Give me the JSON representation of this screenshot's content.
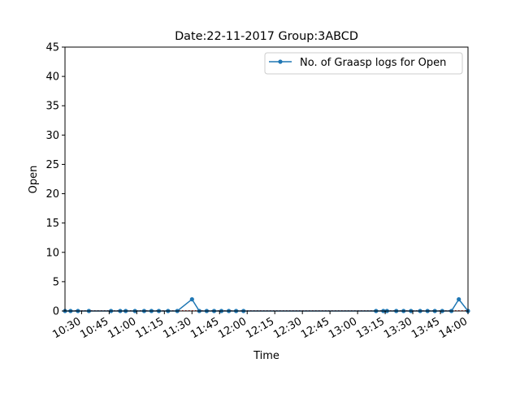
{
  "chart_data": {
    "type": "line",
    "title": "Date:22-11-2017  Group:3ABCD",
    "xlabel": "Time",
    "ylabel": "Open",
    "ylim": [
      0,
      45
    ],
    "yticks": [
      0,
      5,
      10,
      15,
      20,
      25,
      30,
      35,
      40,
      45
    ],
    "xlim": [
      "10:21",
      "14:00"
    ],
    "xticks": [
      "10:30",
      "10:45",
      "11:00",
      "11:15",
      "11:30",
      "11:45",
      "12:00",
      "12:15",
      "12:30",
      "12:45",
      "13:00",
      "13:15",
      "13:30",
      "13:45",
      "14:00"
    ],
    "grid": false,
    "legend_position": "top-right",
    "series": [
      {
        "name": "No. of Graasp logs for Open",
        "color": "#1f77b4",
        "points": [
          {
            "x": "10:21",
            "y": 0
          },
          {
            "x": "10:24",
            "y": 0
          },
          {
            "x": "10:28",
            "y": 0
          },
          {
            "x": "10:34",
            "y": 0
          },
          {
            "x": "10:46",
            "y": 0
          },
          {
            "x": "10:51",
            "y": 0
          },
          {
            "x": "10:54",
            "y": 0
          },
          {
            "x": "10:59",
            "y": 0
          },
          {
            "x": "11:04",
            "y": 0
          },
          {
            "x": "11:08",
            "y": 0
          },
          {
            "x": "11:12",
            "y": 0
          },
          {
            "x": "11:17",
            "y": 0
          },
          {
            "x": "11:22",
            "y": 0
          },
          {
            "x": "11:30",
            "y": 2
          },
          {
            "x": "11:34",
            "y": 0
          },
          {
            "x": "11:38",
            "y": 0
          },
          {
            "x": "11:42",
            "y": 0
          },
          {
            "x": "11:46",
            "y": 0
          },
          {
            "x": "11:50",
            "y": 0
          },
          {
            "x": "11:54",
            "y": 0
          },
          {
            "x": "11:58",
            "y": 0
          },
          {
            "x": "13:10",
            "y": 0
          },
          {
            "x": "13:14",
            "y": 0
          },
          {
            "x": "13:16",
            "y": 0
          },
          {
            "x": "13:21",
            "y": 0
          },
          {
            "x": "13:25",
            "y": 0
          },
          {
            "x": "13:29",
            "y": 0
          },
          {
            "x": "13:34",
            "y": 0
          },
          {
            "x": "13:38",
            "y": 0
          },
          {
            "x": "13:42",
            "y": 0
          },
          {
            "x": "13:46",
            "y": 0
          },
          {
            "x": "13:51",
            "y": 0
          },
          {
            "x": "13:55",
            "y": 2
          },
          {
            "x": "14:00",
            "y": 0
          }
        ]
      }
    ]
  }
}
